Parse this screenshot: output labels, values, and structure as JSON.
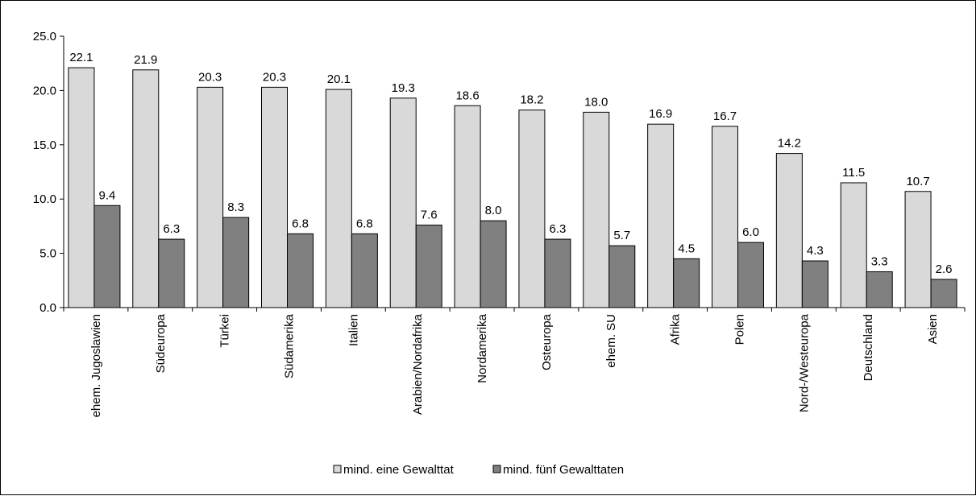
{
  "chart_data": {
    "type": "bar",
    "categories": [
      "ehem. Jugoslawien",
      "Südeuropa",
      "Türkei",
      "Südamerika",
      "Italien",
      "Arabien/Nordafrika",
      "Nordamerika",
      "Osteuropa",
      "ehem. SU",
      "Afrika",
      "Polen",
      "Nord-/Westeuropa",
      "Deutschland",
      "Asien"
    ],
    "series": [
      {
        "name": "mind. eine Gewalttat",
        "color": "#d9d9d9",
        "values": [
          22.1,
          21.9,
          20.3,
          20.3,
          20.1,
          19.3,
          18.6,
          18.2,
          18.0,
          16.9,
          16.7,
          14.2,
          11.5,
          10.7
        ],
        "labels": [
          "22.1",
          "21.9",
          "20.3",
          "20.3",
          "20.1",
          "19.3",
          "18.6",
          "18.2",
          "18.0",
          "16.9",
          "16.7",
          "14.2",
          "11.5",
          "10.7"
        ]
      },
      {
        "name": "mind. fünf Gewalttaten",
        "color": "#808080",
        "values": [
          9.4,
          6.3,
          8.3,
          6.8,
          6.8,
          7.6,
          8.0,
          6.3,
          5.7,
          4.5,
          6.0,
          4.3,
          3.3,
          2.6
        ],
        "labels": [
          "9.4",
          "6.3",
          "8.3",
          "6.8",
          "6.8",
          "7.6",
          "8.0",
          "6.3",
          "5.7",
          "4.5",
          "6.0",
          "4.3",
          "3.3",
          "2.6"
        ]
      }
    ],
    "ylim": [
      0,
      25
    ],
    "yticks": [
      0,
      5,
      10,
      15,
      20,
      25
    ],
    "ytick_labels": [
      "0.0",
      "5.0",
      "10.0",
      "15.0",
      "20.0",
      "25.0"
    ],
    "grid": false,
    "legend_position": "bottom"
  }
}
